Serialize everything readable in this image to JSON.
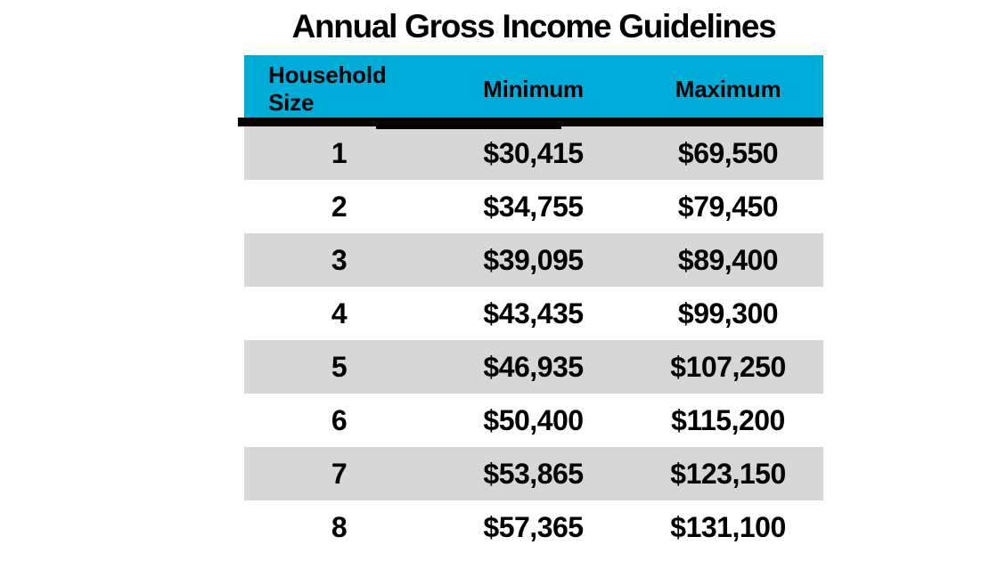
{
  "title": "Annual Gross Income Guidelines",
  "colors": {
    "page_bg": "#FFFFFF",
    "header_bg": "#00ACD8",
    "stripe": "#D7D7D7",
    "divider": "#000000",
    "text": "#000000"
  },
  "chart_data": {
    "type": "table",
    "title": "Annual Gross Income Guidelines",
    "columns": [
      "Household Size",
      "Minimum",
      "Maximum"
    ],
    "rows": [
      [
        "1",
        "$30,415",
        "$69,550"
      ],
      [
        "2",
        "$34,755",
        "$79,450"
      ],
      [
        "3",
        "$39,095",
        "$89,400"
      ],
      [
        "4",
        "$43,435",
        "$99,300"
      ],
      [
        "5",
        "$46,935",
        "$107,250"
      ],
      [
        "6",
        "$50,400",
        "$115,200"
      ],
      [
        "7",
        "$53,865",
        "$123,150"
      ],
      [
        "8",
        "$57,365",
        "$131,100"
      ]
    ],
    "layout_hints": {
      "striped_rows": "odd rows gray, even rows white",
      "header_background": "cyan",
      "thick_black_rule_below_header": true
    }
  }
}
